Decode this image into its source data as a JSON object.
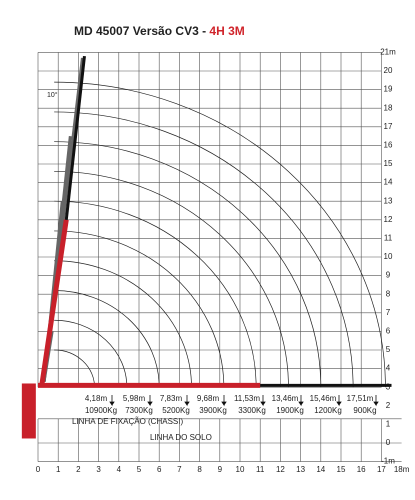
{
  "header": {
    "title": "MD 45007 Versão CV3 - ",
    "model": "4H 3M"
  },
  "angle_label": "10°",
  "y_axis_labels": [
    "21m",
    "20",
    "19",
    "18",
    "17",
    "16",
    "15",
    "14",
    "13",
    "12",
    "11",
    "10",
    "9",
    "8",
    "7",
    "6",
    "5",
    "4",
    "3",
    "2",
    "1",
    "0",
    "-1m"
  ],
  "x_axis_labels": [
    "0",
    "1",
    "2",
    "3",
    "4",
    "5",
    "6",
    "7",
    "8",
    "9",
    "10",
    "11",
    "12",
    "13",
    "14",
    "15",
    "16",
    "17",
    "18m"
  ],
  "reach_labels": [
    "4,18m",
    "5,98m",
    "7,83m",
    "9,68m",
    "11,53m",
    "13,46m",
    "15,46m",
    "17,51m"
  ],
  "load_labels": [
    "10900Kg",
    "7300Kg",
    "5200Kg",
    "3900Kg",
    "3300Kg",
    "1900Kg",
    "1200Kg",
    "900Kg"
  ],
  "fixation_line": "LINHA DE FIXAÇÃO (CHASSI)",
  "ground_line": "LINHA DO SOLO"
}
